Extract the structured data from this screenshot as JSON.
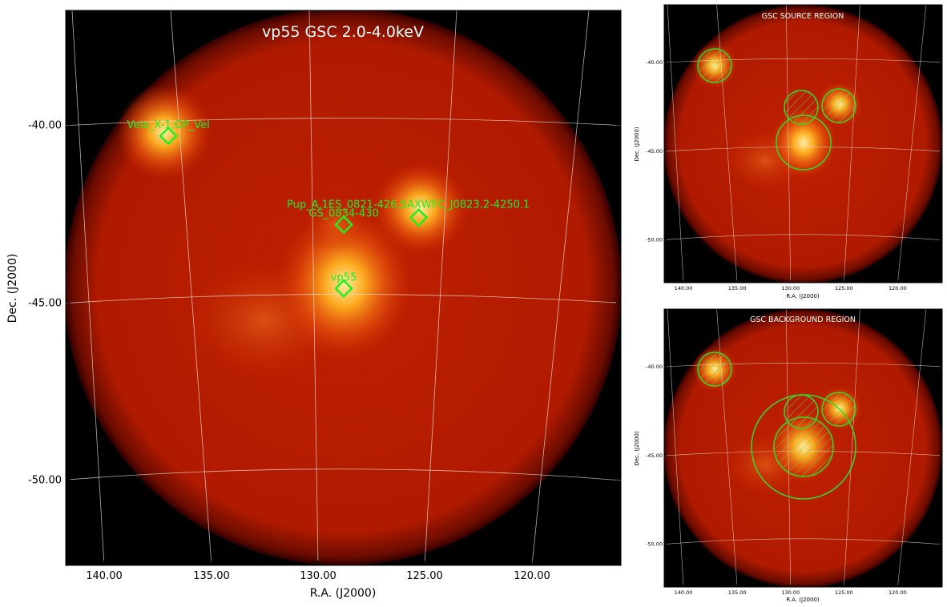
{
  "chart_data": [
    {
      "type": "heatmap",
      "title": "vp55 GSC 2.0-4.0keV",
      "xlabel": "R.A. (J2000)",
      "ylabel": "Dec. (J2000)",
      "xlim": [
        142.0,
        116.0
      ],
      "ylim": [
        -52.0,
        -36.8
      ],
      "x_ticks": [
        "140.00",
        "135.00",
        "130.00",
        "125.00",
        "120.00"
      ],
      "y_ticks": [
        "-40.00",
        "-45.00",
        "-50.00"
      ],
      "grid": true,
      "colormap": "hot",
      "sources": [
        {
          "label": "Vela_X-1,GP_Vel",
          "ra": 137.0,
          "dec": -40.3
        },
        {
          "label": "Pup_A,1ES_0821-426,SAXWFC_J0823.2-4250.1",
          "ra": 125.3,
          "dec": -42.6
        },
        {
          "label": "GS_0834-430",
          "ra": 128.8,
          "dec": -42.8
        },
        {
          "label": "vp55",
          "ra": 128.8,
          "dec": -44.6
        }
      ],
      "marker_color": "#22ee22"
    },
    {
      "type": "heatmap",
      "title": "GSC SOURCE REGION",
      "xlabel": "R.A. (J2000)",
      "ylabel": "Dec. (J2000)",
      "x_ticks": [
        "140.00",
        "135.00",
        "130.00",
        "125.00",
        "120.00"
      ],
      "y_ticks": [
        "-40.00",
        "-45.00",
        "-50.00"
      ]
    },
    {
      "type": "heatmap",
      "title": "GSC BACKGROUND REGION",
      "xlabel": "R.A. (J2000)",
      "ylabel": "Dec. (J2000)",
      "x_ticks": [
        "140.00",
        "135.00",
        "130.00",
        "125.00",
        "120.00"
      ],
      "y_ticks": [
        "-40.00",
        "-45.00",
        "-50.00"
      ]
    }
  ]
}
